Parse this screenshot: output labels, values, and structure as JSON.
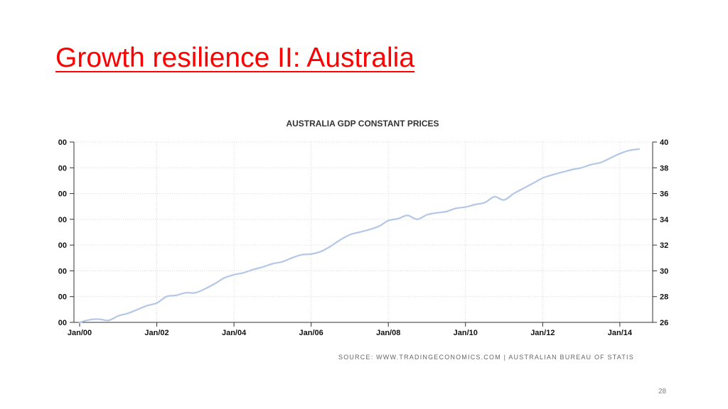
{
  "slide": {
    "title": "Growth resilience II: Australia",
    "page_number": "28"
  },
  "colors": {
    "title": "#ff0000",
    "series_line": "#b4c7e7",
    "gridline": "#d9d9d9",
    "axis": "#333333"
  },
  "chart_data": {
    "type": "line",
    "title": "AUSTRALIA GDP CONSTANT PRICES",
    "source": "SOURCE:  WWW.TRADINGECONOMICS.COM  |  AUSTRALIAN BUREAU OF STATIS",
    "x_tick_labels": [
      "Jan/00",
      "Jan/02",
      "Jan/04",
      "Jan/06",
      "Jan/08",
      "Jan/10",
      "Jan/12",
      "Jan/14"
    ],
    "left_tick_labels": [
      "00",
      "00",
      "00",
      "00",
      "00",
      "00",
      "00",
      "00"
    ],
    "right_tick_labels": [
      "26",
      "28",
      "30",
      "32",
      "34",
      "36",
      "38",
      "40"
    ],
    "xlim": [
      2000.0,
      2014.85
    ],
    "ylim": [
      26,
      40
    ],
    "grid": true,
    "series": [
      {
        "x": [
          2000.0,
          2000.25,
          2000.5,
          2000.75,
          2001.0,
          2001.25,
          2001.5,
          2001.75,
          2002.0,
          2002.25,
          2002.5,
          2002.75,
          2003.0,
          2003.25,
          2003.5,
          2003.75,
          2004.0,
          2004.25,
          2004.5,
          2004.75,
          2005.0,
          2005.25,
          2005.5,
          2005.75,
          2006.0,
          2006.25,
          2006.5,
          2006.75,
          2007.0,
          2007.25,
          2007.5,
          2007.75,
          2008.0,
          2008.25,
          2008.5,
          2008.75,
          2009.0,
          2009.25,
          2009.5,
          2009.75,
          2010.0,
          2010.25,
          2010.5,
          2010.75,
          2011.0,
          2011.25,
          2011.5,
          2011.75,
          2012.0,
          2012.25,
          2012.5,
          2012.75,
          2013.0,
          2013.25,
          2013.5,
          2013.75,
          2014.0,
          2014.25,
          2014.5
        ],
        "values": [
          26.0,
          26.2,
          26.25,
          26.15,
          26.5,
          26.7,
          27.0,
          27.3,
          27.5,
          28.0,
          28.1,
          28.3,
          28.3,
          28.6,
          29.0,
          29.45,
          29.7,
          29.85,
          30.1,
          30.3,
          30.55,
          30.7,
          31.0,
          31.25,
          31.3,
          31.5,
          31.9,
          32.4,
          32.8,
          33.0,
          33.2,
          33.45,
          33.9,
          34.05,
          34.3,
          34.0,
          34.35,
          34.5,
          34.6,
          34.85,
          34.95,
          35.15,
          35.3,
          35.75,
          35.5,
          36.0,
          36.4,
          36.8,
          37.2,
          37.45,
          37.65,
          37.85,
          38.0,
          38.25,
          38.4,
          38.75,
          39.1,
          39.35,
          39.45
        ]
      }
    ]
  }
}
